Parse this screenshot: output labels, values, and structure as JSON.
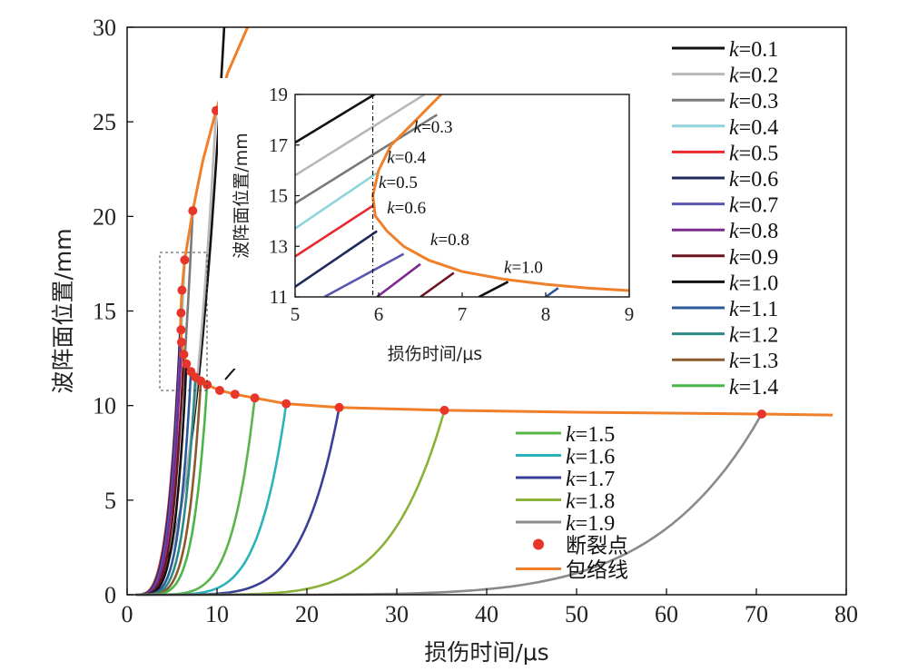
{
  "chart_data": [
    {
      "type": "line",
      "xlabel": "损伤时间/μs",
      "ylabel": "波阵面位置/mm",
      "xlim": [
        0,
        80
      ],
      "ylim": [
        0,
        30
      ],
      "xticks": [
        "0",
        "10",
        "20",
        "30",
        "40",
        "50",
        "60",
        "70",
        "80"
      ],
      "yticks": [
        "0",
        "5",
        "10",
        "15",
        "20",
        "25",
        "30"
      ],
      "series": [
        {
          "name": "k=0.1",
          "color": "#111111",
          "fracture": null
        },
        {
          "name": "k=0.2",
          "color": "#b8b8b8",
          "fracture": null
        },
        {
          "name": "k=0.3",
          "color": "#7a7a7a",
          "fracture": null
        },
        {
          "name": "k=0.4",
          "color": "#8ed4dc",
          "fracture": null
        },
        {
          "name": "k=0.5",
          "color": "#e8282d",
          "fracture": null
        },
        {
          "name": "k=0.6",
          "color": "#1f2a5a",
          "fracture": null
        },
        {
          "name": "k=0.7",
          "color": "#5a55b0",
          "fracture": null
        },
        {
          "name": "k=0.8",
          "color": "#7b2a8f",
          "fracture": null
        },
        {
          "name": "k=0.9",
          "color": "#6b1420",
          "fracture": null
        },
        {
          "name": "k=1.0",
          "color": "#111111",
          "fracture": null
        },
        {
          "name": "k=1.1",
          "color": "#2a5a9c",
          "fracture": null
        },
        {
          "name": "k=1.2",
          "color": "#2b8a86",
          "fracture": null
        },
        {
          "name": "k=1.3",
          "color": "#8a5a2e",
          "fracture": null
        },
        {
          "name": "k=1.4",
          "color": "#4bb54a",
          "fracture": null
        },
        {
          "name": "k=1.5",
          "color": "#5ab54a",
          "fracture": [
            14.2,
            10.4
          ]
        },
        {
          "name": "k=1.6",
          "color": "#2ab3b8",
          "fracture": [
            17.7,
            10.1
          ]
        },
        {
          "name": "k=1.7",
          "color": "#3a3f95",
          "fracture": [
            23.6,
            9.9
          ]
        },
        {
          "name": "k=1.8",
          "color": "#8ab23a",
          "fracture": [
            35.3,
            9.75
          ]
        },
        {
          "name": "k=1.9",
          "color": "#8a8a8a",
          "fracture": [
            70.6,
            9.55
          ]
        }
      ],
      "fracture_points": {
        "name": "断裂点",
        "color": "#e8352a",
        "points": [
          [
            9.9,
            25.6
          ],
          [
            7.3,
            20.3
          ],
          [
            6.4,
            17.7
          ],
          [
            6.1,
            16.1
          ],
          [
            6.0,
            14.9
          ],
          [
            6.0,
            14.0
          ],
          [
            6.05,
            13.35
          ],
          [
            6.3,
            12.7
          ],
          [
            6.6,
            12.2
          ],
          [
            7.1,
            11.8
          ],
          [
            7.6,
            11.5
          ],
          [
            8.2,
            11.3
          ],
          [
            8.9,
            11.1
          ],
          [
            10.3,
            10.8
          ],
          [
            12.0,
            10.6
          ],
          [
            14.2,
            10.4
          ],
          [
            17.7,
            10.1
          ],
          [
            23.6,
            9.9
          ],
          [
            35.3,
            9.75
          ],
          [
            70.6,
            9.55
          ]
        ]
      },
      "envelope": {
        "name": "包络线",
        "color": "#f07f2a",
        "points": [
          [
            13.4,
            30
          ],
          [
            11.2,
            27.6
          ],
          [
            9.9,
            25.6
          ],
          [
            8.4,
            22.9
          ],
          [
            7.3,
            20.3
          ],
          [
            6.4,
            17.7
          ],
          [
            6.1,
            16.1
          ],
          [
            6.0,
            15.2
          ],
          [
            5.95,
            14.5
          ],
          [
            6.0,
            14.0
          ],
          [
            6.05,
            13.35
          ],
          [
            6.3,
            12.7
          ],
          [
            6.6,
            12.2
          ],
          [
            7.1,
            11.8
          ],
          [
            7.6,
            11.5
          ],
          [
            8.2,
            11.3
          ],
          [
            8.9,
            11.1
          ],
          [
            10.3,
            10.8
          ],
          [
            12.0,
            10.6
          ],
          [
            14.2,
            10.4
          ],
          [
            17.7,
            10.1
          ],
          [
            23.6,
            9.9
          ],
          [
            35.3,
            9.75
          ],
          [
            50,
            9.65
          ],
          [
            70.6,
            9.55
          ],
          [
            78.5,
            9.5
          ]
        ]
      },
      "legend_position": "right"
    },
    {
      "type": "line",
      "xlabel": "损伤时间/μs",
      "ylabel": "波阵面位置/mm",
      "xlim": [
        5,
        9
      ],
      "ylim": [
        11,
        19
      ],
      "xticks": [
        "5",
        "6",
        "7",
        "8",
        "9"
      ],
      "yticks": [
        "11",
        "13",
        "15",
        "17",
        "19"
      ],
      "vertical_line_x": 5.93,
      "annotations": [
        "k=0.3",
        "k=0.4",
        "k=0.5",
        "k=0.6",
        "k=0.8",
        "k=1.0"
      ],
      "inset_lines": [
        {
          "k": "k=0.1",
          "color": "#111111",
          "points": [
            [
              5.0,
              17.1
            ],
            [
              5.95,
              19.0
            ]
          ]
        },
        {
          "k": "k=0.2",
          "color": "#b8b8b8",
          "points": [
            [
              5.0,
              15.8
            ],
            [
              6.55,
              19.0
            ]
          ]
        },
        {
          "k": "k=0.3",
          "color": "#7a7a7a",
          "points": [
            [
              5.0,
              14.7
            ],
            [
              6.7,
              18.2
            ]
          ]
        },
        {
          "k": "k=0.4",
          "color": "#8ed4dc",
          "points": [
            [
              5.0,
              13.7
            ],
            [
              5.98,
              15.9
            ]
          ]
        },
        {
          "k": "k=0.5",
          "color": "#e8282d",
          "points": [
            [
              5.0,
              12.6
            ],
            [
              5.93,
              14.6
            ]
          ]
        },
        {
          "k": "k=0.6",
          "color": "#1f2a5a",
          "points": [
            [
              5.0,
              11.4
            ],
            [
              5.98,
              13.6
            ]
          ]
        },
        {
          "k": "k=0.7",
          "color": "#5a55b0",
          "points": [
            [
              5.35,
              11.0
            ],
            [
              6.3,
              12.7
            ]
          ]
        },
        {
          "k": "k=0.8",
          "color": "#7b2a8f",
          "points": [
            [
              5.98,
              11.0
            ],
            [
              6.5,
              12.3
            ]
          ]
        },
        {
          "k": "k=0.9",
          "color": "#6b1420",
          "points": [
            [
              6.5,
              11.0
            ],
            [
              6.9,
              11.95
            ]
          ]
        },
        {
          "k": "k=1.0",
          "color": "#111111",
          "points": [
            [
              7.2,
              11.0
            ],
            [
              7.55,
              11.6
            ]
          ]
        },
        {
          "k": "k=1.1",
          "color": "#2a5a9c",
          "points": [
            [
              8.0,
              11.0
            ],
            [
              8.15,
              11.35
            ]
          ]
        }
      ],
      "envelope": {
        "color": "#f07f2a",
        "points": [
          [
            6.75,
            19.0
          ],
          [
            6.45,
            18.0
          ],
          [
            6.15,
            17.0
          ],
          [
            6.0,
            16.0
          ],
          [
            5.93,
            15.0
          ],
          [
            5.96,
            14.2
          ],
          [
            6.1,
            13.6
          ],
          [
            6.3,
            13.0
          ],
          [
            6.6,
            12.45
          ],
          [
            7.0,
            12.0
          ],
          [
            7.5,
            11.7
          ],
          [
            8.0,
            11.5
          ],
          [
            8.5,
            11.35
          ],
          [
            9.0,
            11.25
          ]
        ]
      }
    }
  ]
}
